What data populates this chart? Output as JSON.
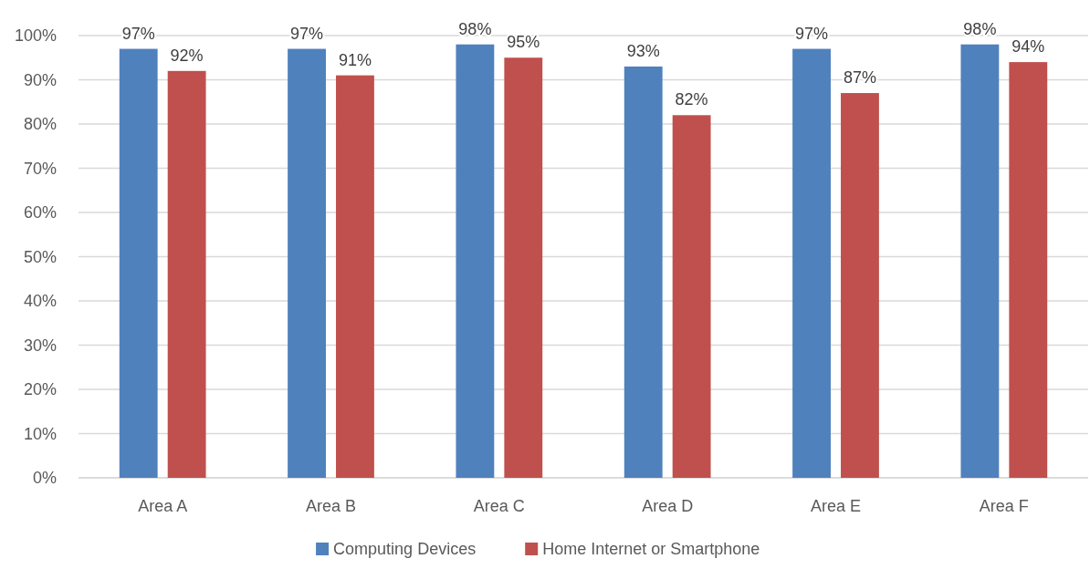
{
  "chart_data": {
    "type": "bar",
    "categories": [
      "Area A",
      "Area B",
      "Area C",
      "Area D",
      "Area E",
      "Area F"
    ],
    "series": [
      {
        "name": "Computing Devices",
        "color": "#4f81bd",
        "values": [
          97,
          97,
          98,
          93,
          97,
          98
        ],
        "value_labels": [
          "97%",
          "97%",
          "98%",
          "93%",
          "97%",
          "98%"
        ]
      },
      {
        "name": "Home Internet or Smartphone",
        "color": "#c0504d",
        "values": [
          92,
          91,
          95,
          82,
          87,
          94
        ],
        "value_labels": [
          "92%",
          "91%",
          "95%",
          "82%",
          "87%",
          "94%"
        ]
      }
    ],
    "ylim": [
      0,
      100
    ],
    "yticks": [
      {
        "value": 0,
        "label": "0%"
      },
      {
        "value": 10,
        "label": "10%"
      },
      {
        "value": 20,
        "label": "20%"
      },
      {
        "value": 30,
        "label": "30%"
      },
      {
        "value": 40,
        "label": "40%"
      },
      {
        "value": 50,
        "label": "50%"
      },
      {
        "value": 60,
        "label": "60%"
      },
      {
        "value": 70,
        "label": "70%"
      },
      {
        "value": 80,
        "label": "80%"
      },
      {
        "value": 90,
        "label": "90%"
      },
      {
        "value": 100,
        "label": "100%"
      }
    ],
    "grid": "y",
    "legend": "bottom"
  }
}
